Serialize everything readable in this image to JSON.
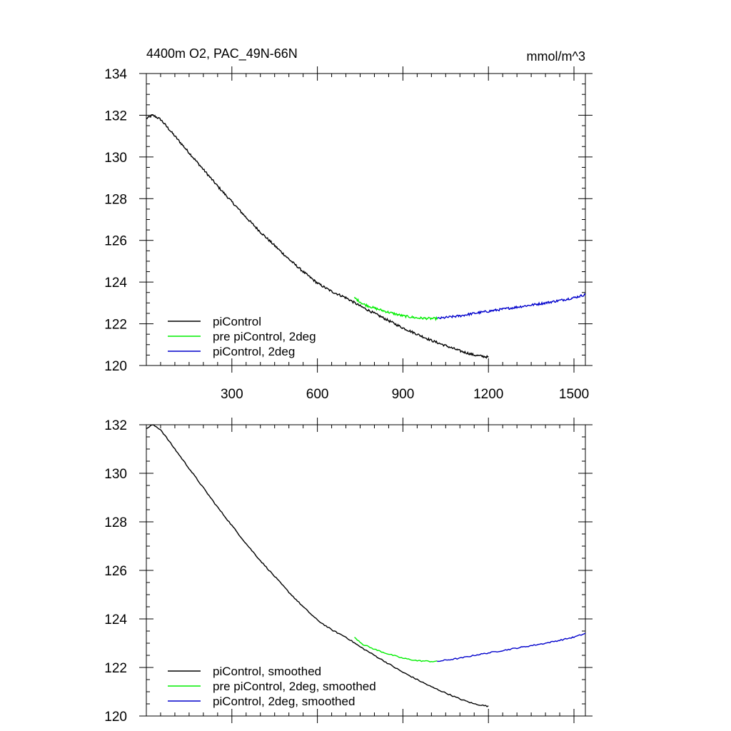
{
  "chart_data": [
    {
      "type": "line",
      "title": "4400m O2, PAC_49N-66N",
      "units": "mmol/m^3",
      "xlabel": "",
      "ylabel": "",
      "xlim": [
        0,
        1540
      ],
      "ylim": [
        120,
        134
      ],
      "xticks": [
        300,
        600,
        900,
        1200,
        1500
      ],
      "xtick_labels": [
        "300",
        "600",
        "900",
        "1200",
        "1500"
      ],
      "yticks": [
        120,
        122,
        124,
        126,
        128,
        130,
        132,
        134
      ],
      "ytick_labels": [
        "120",
        "122",
        "124",
        "126",
        "128",
        "130",
        "132",
        "134"
      ],
      "grid": false,
      "legend_position": "bottom-left",
      "noise": true,
      "series": [
        {
          "name": "piControl",
          "color": "#000000",
          "points": [
            [
              0,
              131.85
            ],
            [
              10,
              131.9
            ],
            [
              20,
              132.0
            ],
            [
              30,
              131.95
            ],
            [
              50,
              131.8
            ],
            [
              100,
              131.0
            ],
            [
              150,
              130.2
            ],
            [
              200,
              129.4
            ],
            [
              250,
              128.6
            ],
            [
              300,
              127.85
            ],
            [
              350,
              127.1
            ],
            [
              400,
              126.4
            ],
            [
              450,
              125.75
            ],
            [
              500,
              125.1
            ],
            [
              550,
              124.5
            ],
            [
              600,
              123.95
            ],
            [
              650,
              123.55
            ],
            [
              700,
              123.25
            ],
            [
              750,
              122.85
            ],
            [
              800,
              122.5
            ],
            [
              850,
              122.15
            ],
            [
              900,
              121.8
            ],
            [
              950,
              121.5
            ],
            [
              1000,
              121.2
            ],
            [
              1050,
              120.95
            ],
            [
              1100,
              120.7
            ],
            [
              1150,
              120.5
            ],
            [
              1200,
              120.4
            ]
          ]
        },
        {
          "name": "pre piControl, 2deg",
          "color": "#00ee00",
          "points": [
            [
              730,
              123.25
            ],
            [
              760,
              122.95
            ],
            [
              800,
              122.75
            ],
            [
              850,
              122.55
            ],
            [
              900,
              122.38
            ],
            [
              950,
              122.28
            ],
            [
              1000,
              122.25
            ],
            [
              1020,
              122.25
            ]
          ]
        },
        {
          "name": "piControl, 2deg",
          "color": "#0000cc",
          "points": [
            [
              1020,
              122.25
            ],
            [
              1050,
              122.3
            ],
            [
              1100,
              122.38
            ],
            [
              1150,
              122.5
            ],
            [
              1200,
              122.6
            ],
            [
              1250,
              122.7
            ],
            [
              1300,
              122.8
            ],
            [
              1350,
              122.9
            ],
            [
              1400,
              123.0
            ],
            [
              1450,
              123.12
            ],
            [
              1500,
              123.25
            ],
            [
              1540,
              123.4
            ]
          ]
        }
      ]
    },
    {
      "type": "line",
      "title": "",
      "xlabel": "",
      "ylabel": "",
      "xlim": [
        0,
        1540
      ],
      "ylim": [
        120,
        132
      ],
      "xticks": [
        300,
        600,
        900,
        1200,
        1500
      ],
      "xtick_labels": [],
      "yticks": [
        120,
        122,
        124,
        126,
        128,
        130,
        132
      ],
      "ytick_labels": [
        "120",
        "122",
        "124",
        "126",
        "128",
        "130",
        "132"
      ],
      "grid": false,
      "legend_position": "bottom-left",
      "noise": false,
      "series": [
        {
          "name": "piControl, smoothed",
          "color": "#000000",
          "points": [
            [
              0,
              131.85
            ],
            [
              10,
              131.9
            ],
            [
              20,
              132.0
            ],
            [
              30,
              131.95
            ],
            [
              50,
              131.8
            ],
            [
              100,
              131.0
            ],
            [
              150,
              130.2
            ],
            [
              200,
              129.4
            ],
            [
              250,
              128.6
            ],
            [
              300,
              127.85
            ],
            [
              350,
              127.1
            ],
            [
              400,
              126.4
            ],
            [
              450,
              125.75
            ],
            [
              500,
              125.1
            ],
            [
              550,
              124.5
            ],
            [
              600,
              123.95
            ],
            [
              650,
              123.55
            ],
            [
              700,
              123.25
            ],
            [
              750,
              122.85
            ],
            [
              800,
              122.5
            ],
            [
              850,
              122.15
            ],
            [
              900,
              121.8
            ],
            [
              950,
              121.5
            ],
            [
              1000,
              121.2
            ],
            [
              1050,
              120.95
            ],
            [
              1100,
              120.7
            ],
            [
              1150,
              120.5
            ],
            [
              1200,
              120.4
            ]
          ]
        },
        {
          "name": "pre piControl, 2deg, smoothed",
          "color": "#00ee00",
          "points": [
            [
              730,
              123.25
            ],
            [
              760,
              122.95
            ],
            [
              800,
              122.75
            ],
            [
              850,
              122.55
            ],
            [
              900,
              122.38
            ],
            [
              950,
              122.28
            ],
            [
              1000,
              122.25
            ],
            [
              1020,
              122.25
            ]
          ]
        },
        {
          "name": "piControl, 2deg, smoothed",
          "color": "#0000cc",
          "points": [
            [
              1020,
              122.25
            ],
            [
              1050,
              122.3
            ],
            [
              1100,
              122.38
            ],
            [
              1150,
              122.5
            ],
            [
              1200,
              122.6
            ],
            [
              1250,
              122.7
            ],
            [
              1300,
              122.8
            ],
            [
              1350,
              122.9
            ],
            [
              1400,
              123.0
            ],
            [
              1450,
              123.12
            ],
            [
              1500,
              123.25
            ],
            [
              1540,
              123.4
            ]
          ]
        }
      ]
    }
  ]
}
